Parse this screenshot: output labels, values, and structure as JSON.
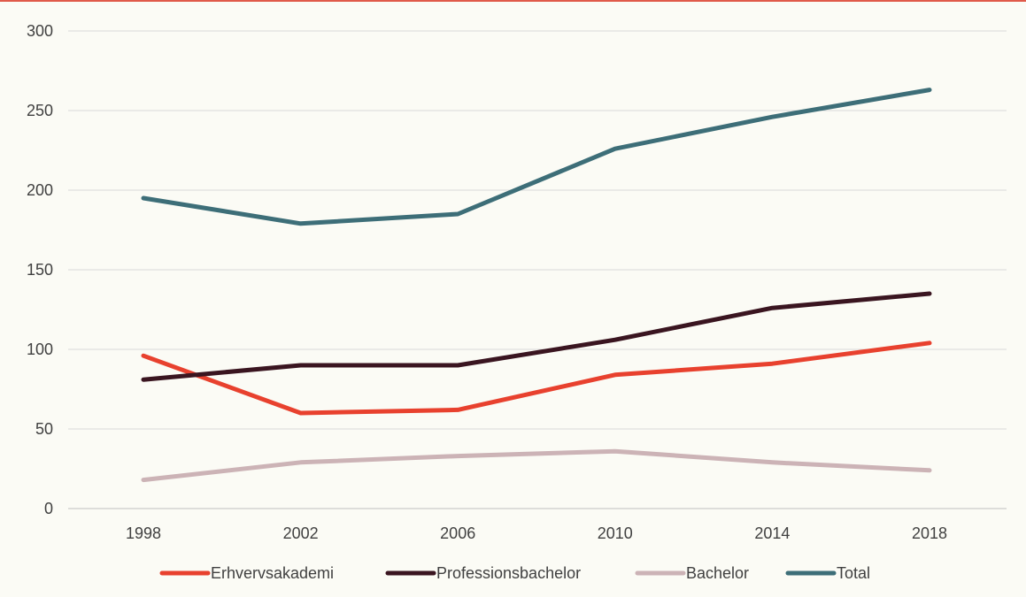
{
  "chart_data": {
    "type": "line",
    "title": "",
    "xlabel": "",
    "ylabel": "",
    "categories": [
      "1998",
      "2002",
      "2006",
      "2010",
      "2014",
      "2018"
    ],
    "ylim": [
      0,
      300
    ],
    "yticks": [
      0,
      50,
      100,
      150,
      200,
      250,
      300
    ],
    "grid": true,
    "legend_position": "bottom",
    "series": [
      {
        "name": "Erhvervsakademi",
        "color": "#e8412e",
        "values": [
          96,
          60,
          62,
          84,
          91,
          104
        ]
      },
      {
        "name": "Professionsbachelor",
        "color": "#3a1520",
        "values": [
          81,
          90,
          90,
          106,
          126,
          135
        ]
      },
      {
        "name": "Bachelor",
        "color": "#ccb3b6",
        "values": [
          18,
          29,
          33,
          36,
          29,
          24
        ]
      },
      {
        "name": "Total",
        "color": "#3d6e78",
        "values": [
          195,
          179,
          185,
          226,
          246,
          263
        ]
      }
    ]
  }
}
